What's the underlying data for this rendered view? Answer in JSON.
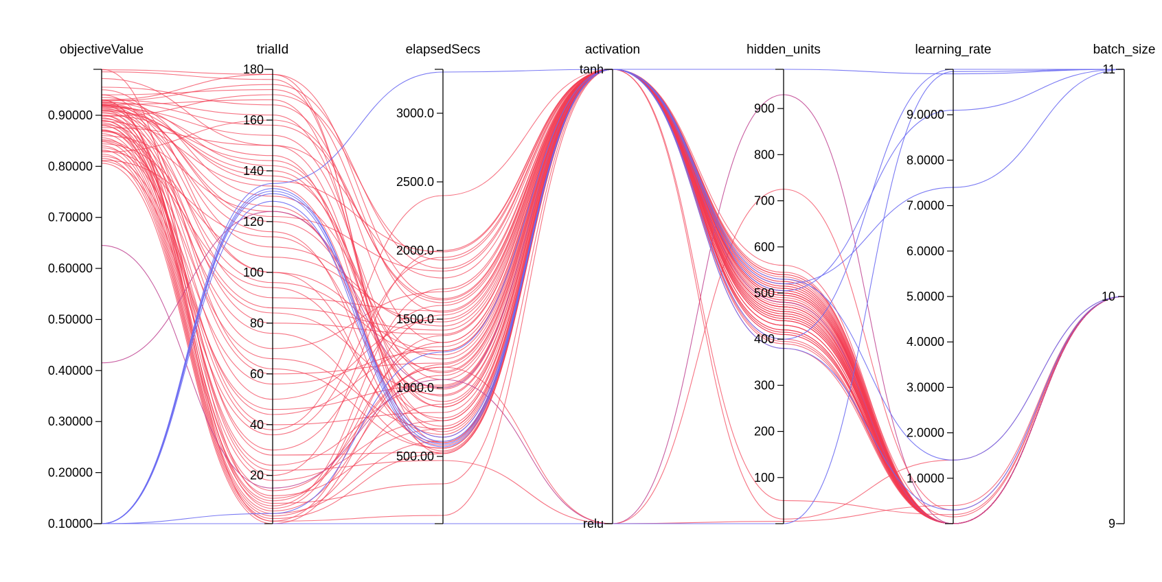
{
  "chart_data": {
    "type": "parallel_coordinates",
    "title": "",
    "colors": {
      "high": "#f23a50",
      "mid": "#c24a96",
      "low": "#6a6af2"
    },
    "axes": [
      {
        "name": "objectiveValue",
        "kind": "numeric",
        "min": 0.1,
        "max": 0.99,
        "ticks": [
          0.1,
          0.2,
          0.3,
          0.4,
          0.5,
          0.6,
          0.7,
          0.8,
          0.9
        ],
        "tick_labels": [
          "0.10000",
          "0.20000",
          "0.30000",
          "0.40000",
          "0.50000",
          "0.60000",
          "0.70000",
          "0.80000",
          "0.90000"
        ]
      },
      {
        "name": "trialId",
        "kind": "numeric",
        "min": 1,
        "max": 180,
        "ticks": [
          20,
          40,
          60,
          80,
          100,
          120,
          140,
          160,
          180
        ],
        "tick_labels": [
          "20",
          "40",
          "60",
          "80",
          "100",
          "120",
          "140",
          "160",
          "180"
        ]
      },
      {
        "name": "elapsedSecs",
        "kind": "numeric",
        "min": 10,
        "max": 3320,
        "ticks": [
          500,
          1000,
          1500,
          2000,
          2500,
          3000
        ],
        "tick_labels": [
          "500.00",
          "1000.0",
          "1500.0",
          "2000.0",
          "2500.0",
          "3000.0"
        ]
      },
      {
        "name": "activation",
        "kind": "categorical",
        "min": 0,
        "max": 1,
        "ticks": [
          0,
          1
        ],
        "tick_labels": [
          "relu",
          "tanh"
        ]
      },
      {
        "name": "hidden_units",
        "kind": "numeric",
        "min": 0,
        "max": 985,
        "ticks": [
          100,
          200,
          300,
          400,
          500,
          600,
          700,
          800,
          900
        ],
        "tick_labels": [
          "100",
          "200",
          "300",
          "400",
          "500",
          "600",
          "700",
          "800",
          "900"
        ]
      },
      {
        "name": "learning_rate",
        "kind": "numeric",
        "min": 0.0001,
        "max": 10,
        "ticks": [
          1,
          2,
          3,
          4,
          5,
          6,
          7,
          8,
          9
        ],
        "tick_labels": [
          "1.0000",
          "2.0000",
          "3.0000",
          "4.0000",
          "5.0000",
          "6.0000",
          "7.0000",
          "8.0000",
          "9.0000"
        ]
      },
      {
        "name": "batch_size",
        "kind": "numeric",
        "min": 9,
        "max": 11,
        "ticks": [
          9,
          10,
          11
        ],
        "tick_labels": [
          "9",
          "10",
          "11"
        ]
      }
    ],
    "lines": [
      [
        0.989,
        178,
        520,
        1,
        480,
        0.0001,
        10
      ],
      [
        0.985,
        176,
        600,
        1,
        470,
        0.0001,
        10
      ],
      [
        0.972,
        150,
        760,
        1,
        505,
        0.0001,
        10
      ],
      [
        0.955,
        166,
        1330,
        1,
        420,
        0.0001,
        10
      ],
      [
        0.94,
        172,
        1550,
        1,
        445,
        0.0001,
        10
      ],
      [
        0.935,
        130,
        1210,
        1,
        520,
        0.0001,
        10
      ],
      [
        0.93,
        162,
        860,
        1,
        455,
        0.0001,
        10
      ],
      [
        0.928,
        174,
        1870,
        1,
        390,
        0.0001,
        10
      ],
      [
        0.926,
        142,
        990,
        1,
        510,
        0.0001,
        10
      ],
      [
        0.925,
        158,
        1640,
        1,
        470,
        0.0001,
        10
      ],
      [
        0.924,
        120,
        1120,
        1,
        430,
        0.0001,
        10
      ],
      [
        0.922,
        110,
        1450,
        1,
        525,
        0.0001,
        10
      ],
      [
        0.921,
        168,
        680,
        1,
        495,
        0.0001,
        10
      ],
      [
        0.92,
        136,
        1990,
        1,
        410,
        0.0001,
        10
      ],
      [
        0.919,
        100,
        1270,
        1,
        460,
        0.0001,
        10
      ],
      [
        0.918,
        146,
        540,
        1,
        540,
        0.0001,
        10
      ],
      [
        0.917,
        90,
        1560,
        1,
        450,
        0.0001,
        10
      ],
      [
        0.915,
        154,
        1060,
        1,
        480,
        0.0001,
        10
      ],
      [
        0.914,
        80,
        1390,
        1,
        500,
        0.0001,
        10
      ],
      [
        0.912,
        126,
        720,
        1,
        420,
        0.0001,
        10
      ],
      [
        0.91,
        70,
        1700,
        1,
        470,
        0.0001,
        10
      ],
      [
        0.908,
        140,
        900,
        1,
        505,
        0.0001,
        10
      ],
      [
        0.906,
        60,
        1180,
        1,
        440,
        0.0001,
        10
      ],
      [
        0.904,
        116,
        580,
        1,
        515,
        0.0001,
        10
      ],
      [
        0.9,
        50,
        1500,
        1,
        485,
        0.0001,
        10
      ],
      [
        0.898,
        170,
        1930,
        1,
        400,
        0.0001,
        10
      ],
      [
        0.895,
        40,
        820,
        1,
        460,
        0.0001,
        10
      ],
      [
        0.893,
        96,
        1240,
        1,
        530,
        0.0001,
        10
      ],
      [
        0.89,
        30,
        1600,
        1,
        475,
        0.0001,
        10
      ],
      [
        0.888,
        134,
        640,
        1,
        450,
        0.0001,
        10
      ],
      [
        0.885,
        24,
        1010,
        1,
        495,
        0.0001,
        10
      ],
      [
        0.882,
        86,
        1420,
        1,
        415,
        0.0001,
        10
      ],
      [
        0.88,
        18,
        760,
        1,
        510,
        0.0001,
        10
      ],
      [
        0.876,
        150,
        1800,
        1,
        440,
        0.0001,
        10
      ],
      [
        0.872,
        14,
        1150,
        1,
        500,
        0.0001,
        10
      ],
      [
        0.868,
        76,
        560,
        1,
        470,
        0.0001,
        10
      ],
      [
        0.864,
        10,
        1330,
        1,
        525,
        0.0001,
        10
      ],
      [
        0.86,
        124,
        940,
        1,
        430,
        0.0001,
        10
      ],
      [
        0.856,
        8,
        1720,
        1,
        480,
        0.0001,
        10
      ],
      [
        0.852,
        66,
        700,
        1,
        455,
        0.0001,
        10
      ],
      [
        0.848,
        6,
        1090,
        1,
        505,
        0.0001,
        10
      ],
      [
        0.844,
        106,
        1480,
        1,
        420,
        0.0001,
        10
      ],
      [
        0.84,
        5,
        610,
        1,
        490,
        0.0001,
        10
      ],
      [
        0.836,
        56,
        1270,
        1,
        535,
        0.0001,
        10
      ],
      [
        0.832,
        4,
        880,
        1,
        445,
        0.0001,
        10
      ],
      [
        0.828,
        160,
        1620,
        1,
        470,
        0.0001,
        10
      ],
      [
        0.824,
        3,
        520,
        1,
        500,
        0.0001,
        10
      ],
      [
        0.82,
        46,
        1020,
        1,
        415,
        0.0001,
        10
      ],
      [
        0.816,
        2,
        1380,
        1,
        485,
        0.0001,
        10
      ],
      [
        0.812,
        114,
        780,
        1,
        515,
        0.0001,
        10
      ],
      [
        0.81,
        36,
        1950,
        1,
        460,
        0.0001,
        10
      ],
      [
        0.806,
        1,
        1170,
        1,
        430,
        0.0001,
        10
      ],
      [
        0.93,
        178,
        1650,
        1,
        395,
        0.0001,
        10
      ],
      [
        0.92,
        122,
        1850,
        1,
        545,
        0.0001,
        10
      ],
      [
        0.91,
        20,
        2000,
        1,
        410,
        0.0001,
        10
      ],
      [
        0.9,
        144,
        860,
        1,
        560,
        0.0001,
        10
      ],
      [
        0.89,
        12,
        700,
        1,
        380,
        0.0001,
        10
      ],
      [
        0.95,
        100,
        600,
        1,
        470,
        0.0001,
        10
      ],
      [
        0.94,
        62,
        560,
        1,
        500,
        0.0001,
        10
      ],
      [
        0.92,
        28,
        530,
        1,
        450,
        0.0001,
        10
      ],
      [
        0.87,
        84,
        950,
        1,
        520,
        0.0001,
        10
      ],
      [
        0.85,
        44,
        1300,
        1,
        440,
        0.0001,
        10
      ],
      [
        0.83,
        94,
        660,
        1,
        495,
        0.0001,
        10
      ],
      [
        0.93,
        7,
        1530,
        1,
        465,
        0.0001,
        10
      ],
      [
        0.91,
        138,
        1110,
        1,
        480,
        0.0001,
        10
      ],
      [
        0.645,
        15,
        1060,
        0,
        930,
        0.0001,
        10
      ],
      [
        0.415,
        124,
        1000,
        1,
        480,
        0.0001,
        10
      ],
      [
        0.93,
        2,
        70,
        1,
        10,
        1.4,
        10
      ],
      [
        0.9,
        22,
        470,
        0,
        725,
        0.3,
        10
      ],
      [
        0.88,
        9,
        300,
        1,
        50,
        0.2,
        10
      ],
      [
        0.87,
        38,
        2400,
        1,
        540,
        0.15,
        10
      ],
      [
        0.99,
        11,
        1150,
        0,
        5,
        0.4,
        10
      ],
      [
        0.1,
        135,
        3300,
        1,
        985,
        9.9,
        11
      ],
      [
        0.1,
        132,
        640,
        1,
        520,
        7.4,
        11
      ],
      [
        0.1,
        131,
        590,
        1,
        505,
        9.1,
        11
      ],
      [
        0.1,
        128,
        570,
        1,
        400,
        10,
        11
      ],
      [
        0.1,
        133,
        610,
        1,
        530,
        1.4,
        10
      ],
      [
        0.1,
        1,
        10,
        0,
        0,
        9.95,
        11
      ],
      [
        0.1,
        5,
        1260,
        1,
        380,
        0.3,
        10
      ]
    ]
  }
}
